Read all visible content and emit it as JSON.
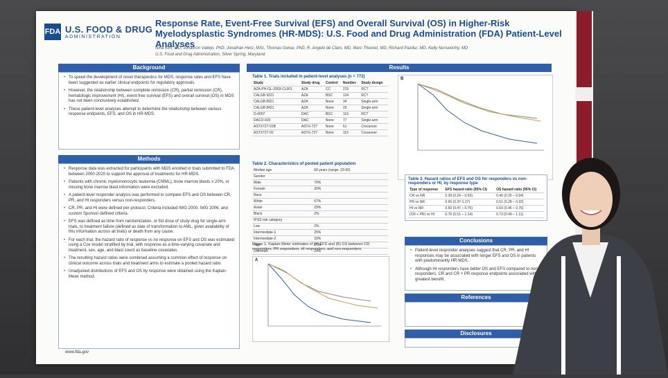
{
  "fda": {
    "mark": "FDA",
    "name": "U.S. FOOD & DRUG",
    "admin": "ADMINISTRATION",
    "url": "www.fda.gov"
  },
  "poster": {
    "title": "Response Rate, Event-Free Survival (EFS) and Overall Survival (OS) in Higher-Risk Myelodysplastic Syndromes (HR-MDS): U.S. Food and Drug Administration (FDA) Patient-Level Analyses",
    "authors": "Nina Kim, MD, Jonathon Vallejo, PhD, Jonathan Herz, MSc, Thomas Gwise, PhD, R. Angelo de Claro, MD, Marc Theoret, MD, Richard Pazdur, MD, Kelly Norsworthy, MD",
    "affiliation": "U.S. Food and Drug Administration, Silver Spring, Maryland"
  },
  "background": {
    "heading": "Background",
    "bullets": [
      "To speed the development of novel therapeutics for MDS, response rates and EFS have been suggested as earlier clinical endpoints for regulatory approvals.",
      "However, the relationship between complete remission (CR), partial remission (CR), hematologic improvement (HI), event-free survival (EFS) and overall survival (OS) in MDS has not been conclusively established.",
      "These patient-level analyses attempt to determine the relationship between various response endpoints, EFS, and OS in HR-MDS."
    ]
  },
  "methods": {
    "heading": "Methods",
    "bullets": [
      "Response data was extracted for participants with MDS enrolled in trials submitted to FDA between 2000-2020 to support the approval of treatments for HR-MDS.",
      "Patients with chronic myelomonocytic leukemia (CMML), bone marrow blasts ≥ 20%, or missing bone marrow blast information were excluded.",
      "A patient-level responder analysis was performed to compare EFS and OS between CR, PR, and HI responders versus non-responders.",
      "CR, PR, and HI were defined per protocol. Criteria included IWG 2000, IWG 2006, and custom Sponsor-defined criteria.",
      "EFS was defined as time from randomization, or fist dose of study drug for single-arm trials, to treatment failure (defined as date of transformation to AML, given availability of this information across all trials) or death from any cause.",
      "For each trial, the hazard ratio of response vs no response on EFS and OS was estimated using a Cox model stratified by trial, with response as a time-varying covariate and treatment, sex, age, and blast count as baseline covariates.",
      "The resulting hazard ratios were combined assuming a common effect of response on clinical outcome across trials and treatment arms to estimate a pooled hazard ratio.",
      "Unadjusted distributions of EFS and OS by response were obtained using the Kaplan-Meier method."
    ]
  },
  "results": {
    "heading": "Results",
    "table1": {
      "title": "Table 1. Trials included in patient-level analyses (n = 772)",
      "headers": [
        "Study",
        "Study drug",
        "Control",
        "Number",
        "Study design"
      ],
      "rows": [
        [
          "AZA-PH-GL-2003-CL001",
          "AZA",
          "CC",
          "215",
          "RCT"
        ],
        [
          "CALGB 9221",
          "AZA",
          "BSC",
          "124",
          "RCT"
        ],
        [
          "CALGB 8921",
          "AZA",
          "None",
          "34",
          "Single-arm"
        ],
        [
          "CALGB 8421",
          "AZA",
          "None",
          "29",
          "Single-arm"
        ],
        [
          "D-0007",
          "DAC",
          "BSC",
          "116",
          "RCT"
        ],
        [
          "DACO-020",
          "DAC",
          "None",
          "77",
          "Single-arm"
        ],
        [
          "ASTX727-01B",
          "ASTX-727",
          "None",
          "61",
          "Crossover"
        ],
        [
          "ASTX727-02",
          "ASTX-727",
          "None",
          "116",
          "Crossover"
        ]
      ]
    },
    "table2": {
      "title": "Table 2. Characteristics of pooled patient population",
      "rows": [
        [
          "Median age",
          "69 years (range: 23-92)"
        ],
        [
          "Gender",
          ""
        ],
        [
          "Male",
          "70%"
        ],
        [
          "Female",
          "30%"
        ],
        [
          "Race",
          ""
        ],
        [
          "White",
          "67%"
        ],
        [
          "Asian",
          "29%"
        ],
        [
          "Black",
          "2%"
        ],
        [
          "IPSS risk category",
          ""
        ],
        [
          "Low",
          "2%"
        ],
        [
          "Intermediate-1",
          "25%"
        ],
        [
          "Intermediate-2",
          "33%"
        ],
        [
          "High",
          "17%"
        ],
        [
          "Unknown",
          "24%"
        ]
      ]
    },
    "figure1_caption": "Figure 1. Kaplan-Meier estimates of (A) EFS and (B) OS between CR responders, PR responders, HI responders, and non-responders.",
    "panel_a": "A",
    "panel_b": "B",
    "table3": {
      "title": "Table 3. Hazard ratios of EFS and OS for responders vs non-responders or HI, by response type",
      "headers": [
        "Type of response",
        "EFS hazard ratio (95% CI)",
        "OS hazard ratio (95% CI)"
      ],
      "rows": [
        [
          "CR vs NR",
          "0.39 (0.24 – 0.63)",
          "0.40 (0.25 – 0.64)"
        ],
        [
          "PR vs NR",
          "0.66 (0.37-1.17)",
          "0.51 (0.28 – 0.92)"
        ],
        [
          "HI vs NR",
          "0.60 (0.47 – 0.76)",
          "0.60 (0.46 – 0.76)"
        ],
        [
          "(CR + PR) vs HI",
          "0.76 (0.51 – 1.14)",
          "0.73 (0.49 – 1.11)"
        ]
      ]
    }
  },
  "conclusions": {
    "heading": "Conclusions",
    "bullets": [
      "Patient-level responder analyses suggest that CR, PR, and HI responses may be associated with longer EFS and OS in patients with predominantly HR-MDS.",
      "Although HI responders have better OS and EFS compared to non-responders, CR and CR + PR response endpoints associated with greatest benefit."
    ]
  },
  "references": {
    "heading": "References"
  },
  "disclosures": {
    "heading": "Disclosures"
  },
  "colors": {
    "fda_blue": "#1a4d8f",
    "section_blue": "#2f5fa8",
    "banner_red": "#8c1c2a"
  }
}
